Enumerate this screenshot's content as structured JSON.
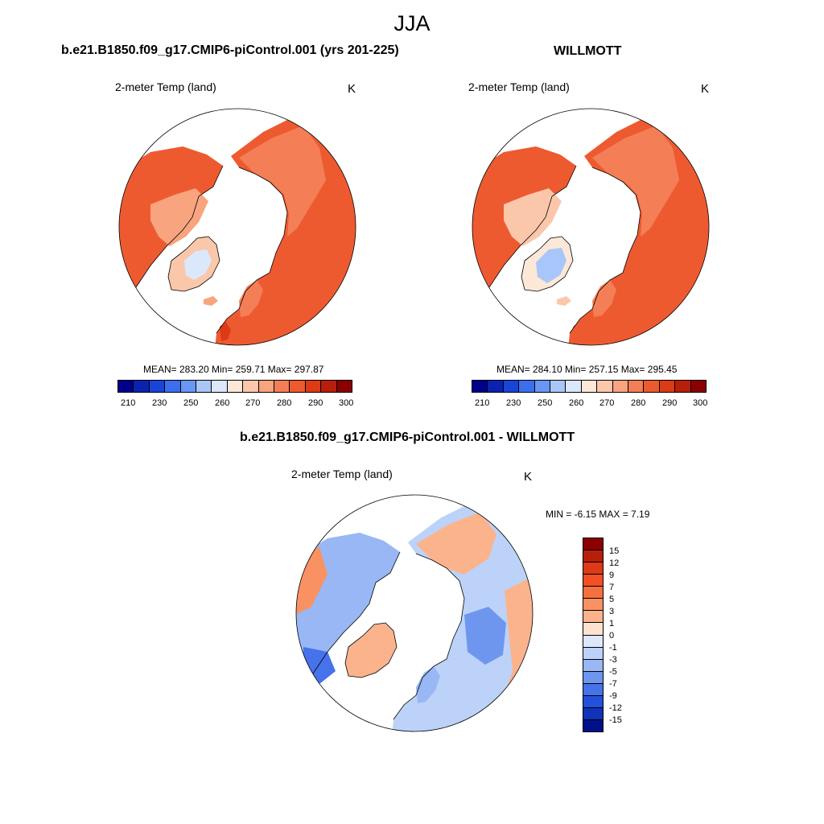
{
  "title": "JJA",
  "panel_left": {
    "case_title": "b.e21.B1850.f09_g17.CMIP6-piControl.001 (yrs 201-225)",
    "variable": "2-meter Temp (land)",
    "unit": "K",
    "stats": "MEAN= 283.20  Min= 259.71  Max= 297.87"
  },
  "panel_right": {
    "case_title": "WILLMOTT",
    "variable": "2-meter Temp (land)",
    "unit": "K",
    "stats": "MEAN= 284.10  Min= 257.15  Max= 295.45"
  },
  "panel_diff": {
    "case_title": "b.e21.B1850.f09_g17.CMIP6-piControl.001 - WILLMOTT",
    "variable": "2-meter Temp (land)",
    "unit": "K",
    "stats": "MIN =  -6.15 MAX =   7.19"
  },
  "colorbar_abs": {
    "ticks": [
      "210",
      "230",
      "250",
      "260",
      "270",
      "280",
      "290",
      "300"
    ],
    "colors": [
      "#00008b",
      "#0a22b0",
      "#1845d8",
      "#3b6fee",
      "#6a97f5",
      "#a9c6fa",
      "#dbe8fc",
      "#fde8d8",
      "#fbc7ab",
      "#f8a47e",
      "#f47f56",
      "#ee5a30",
      "#dd3a17",
      "#b81f0a",
      "#8b0000"
    ]
  },
  "colorbar_diff": {
    "ticks": [
      "15",
      "12",
      "9",
      "7",
      "5",
      "3",
      "1",
      "0",
      "-1",
      "-3",
      "-5",
      "-7",
      "-9",
      "-12",
      "-15"
    ],
    "colors": [
      "#8b0000",
      "#b81f0a",
      "#dd3a17",
      "#f24f25",
      "#f6703f",
      "#f99162",
      "#fbb38c",
      "#fde2d0",
      "#dde9fb",
      "#bcd2f8",
      "#98b7f4",
      "#6f96ef",
      "#4673ea",
      "#2350dc",
      "#1032b8",
      "#00108b"
    ]
  }
}
